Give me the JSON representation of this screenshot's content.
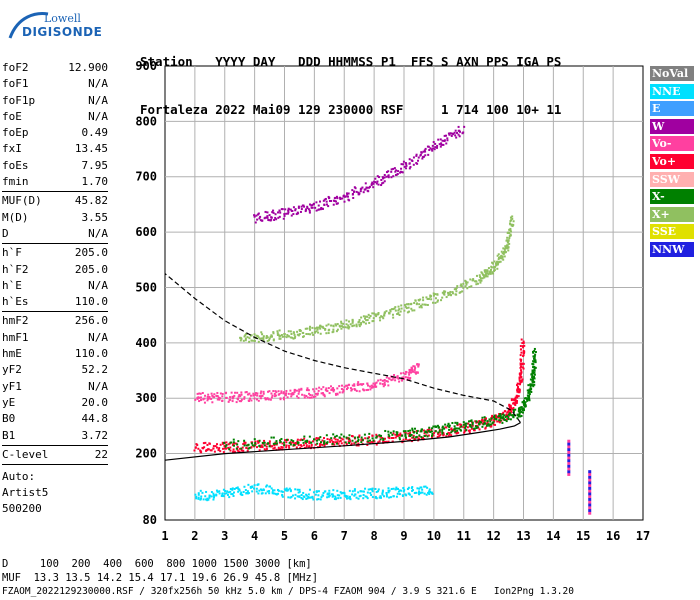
{
  "logo": {
    "line1": "Lowell",
    "line2": "DIGISONDE"
  },
  "header": {
    "line1": "Station   YYYY DAY   DDD HHMMSS P1  FFS S AXN PPS IGA PS",
    "line2": "Fortaleza 2022 Mai09 129 230000 RSF     1 714 100 10+ 11"
  },
  "params": [
    [
      {
        "k": "foF2",
        "v": "12.900"
      },
      {
        "k": "foF1",
        "v": "N/A"
      },
      {
        "k": "foF1p",
        "v": "N/A"
      },
      {
        "k": "foE",
        "v": "N/A"
      },
      {
        "k": "foEp",
        "v": "0.49"
      },
      {
        "k": "fxI",
        "v": "13.45"
      },
      {
        "k": "foEs",
        "v": "7.95"
      },
      {
        "k": "fmin",
        "v": "1.70"
      }
    ],
    [
      {
        "k": "MUF(D)",
        "v": "45.82"
      },
      {
        "k": "M(D)",
        "v": "3.55"
      },
      {
        "k": "D",
        "v": "N/A"
      }
    ],
    [
      {
        "k": "h`F",
        "v": "205.0"
      },
      {
        "k": "h`F2",
        "v": "205.0"
      },
      {
        "k": "h`E",
        "v": "N/A"
      },
      {
        "k": "h`Es",
        "v": "110.0"
      }
    ],
    [
      {
        "k": "hmF2",
        "v": "256.0"
      },
      {
        "k": "hmF1",
        "v": "N/A"
      },
      {
        "k": "hmE",
        "v": "110.0"
      },
      {
        "k": "yF2",
        "v": "52.2"
      },
      {
        "k": "yF1",
        "v": "N/A"
      },
      {
        "k": "yE",
        "v": "20.0"
      },
      {
        "k": "B0",
        "v": "44.8"
      },
      {
        "k": "B1",
        "v": "3.72"
      }
    ],
    [
      {
        "k": "C-level",
        "v": "22"
      }
    ]
  ],
  "auto": {
    "line1": "Auto:",
    "line2": "Artist5",
    "line3": "500200"
  },
  "legend": [
    {
      "label": "NoVal",
      "color": "#808080",
      "text": "#ffffff"
    },
    {
      "label": "NNE",
      "color": "#00e0ff",
      "text": "#ffffff"
    },
    {
      "label": "E",
      "color": "#3f9fff",
      "text": "#ffffff"
    },
    {
      "label": "W",
      "color": "#a000a0",
      "text": "#ffffff"
    },
    {
      "label": "Vo-",
      "color": "#ff40a0",
      "text": "#ffffff"
    },
    {
      "label": "Vo+",
      "color": "#ff0030",
      "text": "#ffffff"
    },
    {
      "label": "SSW",
      "color": "#ffb0b0",
      "text": "#ffffff"
    },
    {
      "label": "X-",
      "color": "#008000",
      "text": "#ffffff"
    },
    {
      "label": "X+",
      "color": "#90c060",
      "text": "#ffffff"
    },
    {
      "label": "SSE",
      "color": "#e0e000",
      "text": "#ffffff"
    },
    {
      "label": "NNW",
      "color": "#2020e0",
      "text": "#ffffff"
    }
  ],
  "footer": {
    "line1": "D     100  200  400  600  800 1000 1500 3000 [km]",
    "line2": "MUF  13.3 13.5 14.2 15.4 17.1 19.6 26.9 45.8 [MHz]",
    "line3": "FZAOM_2022129230000.RSF / 320fx256h 50 kHz 5.0 km / DPS-4 FZAOM 904 / 3.9 S 321.6 E   Ion2Png 1.3.20"
  },
  "chart_data": {
    "type": "scatter",
    "xlim": [
      1,
      17
    ],
    "ylim": [
      80,
      900
    ],
    "xticks": [
      1,
      2,
      3,
      4,
      5,
      6,
      7,
      8,
      9,
      10,
      11,
      12,
      13,
      14,
      15,
      16,
      17
    ],
    "yticks": [
      80,
      200,
      300,
      400,
      500,
      600,
      700,
      800,
      900
    ],
    "grid": true,
    "traces": [
      {
        "name": "Vo+",
        "color": "#ff0030",
        "points": [
          [
            2.0,
            212
          ],
          [
            3.0,
            213
          ],
          [
            4.0,
            215
          ],
          [
            5.0,
            218
          ],
          [
            6.0,
            221
          ],
          [
            7.0,
            224
          ],
          [
            8.0,
            227
          ],
          [
            9.0,
            232
          ],
          [
            10.0,
            238
          ],
          [
            11.0,
            247
          ],
          [
            11.8,
            258
          ],
          [
            12.4,
            272
          ],
          [
            12.7,
            300
          ],
          [
            12.9,
            340
          ],
          [
            12.95,
            410
          ]
        ]
      },
      {
        "name": "X-",
        "color": "#008000",
        "points": [
          [
            3.0,
            218
          ],
          [
            5.0,
            223
          ],
          [
            7.0,
            229
          ],
          [
            9.0,
            237
          ],
          [
            10.0,
            243
          ],
          [
            11.0,
            252
          ],
          [
            12.0,
            262
          ],
          [
            12.8,
            275
          ],
          [
            13.1,
            300
          ],
          [
            13.3,
            340
          ],
          [
            13.35,
            385
          ]
        ]
      },
      {
        "name": "Vo-",
        "color": "#ff40a0",
        "points": [
          [
            2.0,
            302
          ],
          [
            3.0,
            303
          ],
          [
            4.0,
            305
          ],
          [
            5.0,
            308
          ],
          [
            6.0,
            312
          ],
          [
            7.0,
            318
          ],
          [
            8.0,
            327
          ],
          [
            9.0,
            340
          ],
          [
            9.5,
            360
          ]
        ]
      },
      {
        "name": "X+",
        "color": "#90c060",
        "points": [
          [
            3.5,
            410
          ],
          [
            4.5,
            413
          ],
          [
            5.5,
            420
          ],
          [
            6.5,
            428
          ],
          [
            7.5,
            440
          ],
          [
            8.5,
            455
          ],
          [
            9.5,
            472
          ],
          [
            10.5,
            492
          ],
          [
            11.5,
            518
          ],
          [
            12.0,
            540
          ],
          [
            12.4,
            570
          ],
          [
            12.6,
            630
          ]
        ]
      },
      {
        "name": "W",
        "color": "#a000a0",
        "points": [
          [
            4.0,
            628
          ],
          [
            5.0,
            635
          ],
          [
            6.0,
            648
          ],
          [
            7.0,
            665
          ],
          [
            8.0,
            690
          ],
          [
            9.0,
            720
          ],
          [
            10.0,
            758
          ],
          [
            11.0,
            790
          ]
        ]
      },
      {
        "name": "NNE",
        "color": "#00e0ff",
        "points": [
          [
            2.0,
            125
          ],
          [
            3.0,
            128
          ],
          [
            4.0,
            140
          ],
          [
            5.0,
            130
          ],
          [
            6.0,
            127
          ],
          [
            7.0,
            128
          ],
          [
            8.0,
            130
          ],
          [
            9.0,
            132
          ],
          [
            10.0,
            135
          ]
        ]
      }
    ],
    "model_profile": {
      "solid": [
        [
          1.0,
          188
        ],
        [
          3.0,
          200
        ],
        [
          5.0,
          207
        ],
        [
          7.0,
          214
        ],
        [
          9.0,
          222
        ],
        [
          10.5,
          230
        ],
        [
          11.5,
          238
        ],
        [
          12.2,
          244
        ],
        [
          12.7,
          250
        ],
        [
          12.9,
          256
        ]
      ],
      "dashed": [
        [
          12.9,
          256
        ],
        [
          12.6,
          278
        ],
        [
          12.0,
          295
        ],
        [
          11.0,
          305
        ],
        [
          10.0,
          318
        ],
        [
          9.0,
          335
        ],
        [
          8.0,
          345
        ],
        [
          7.0,
          355
        ],
        [
          6.0,
          368
        ],
        [
          5.0,
          385
        ],
        [
          4.0,
          410
        ],
        [
          3.0,
          440
        ],
        [
          2.0,
          480
        ],
        [
          1.0,
          525
        ]
      ]
    },
    "cusp_markers": [
      {
        "x": 14.5,
        "y_from": 165,
        "y_to": 225
      },
      {
        "x": 15.2,
        "y_from": 95,
        "y_to": 170
      }
    ]
  }
}
